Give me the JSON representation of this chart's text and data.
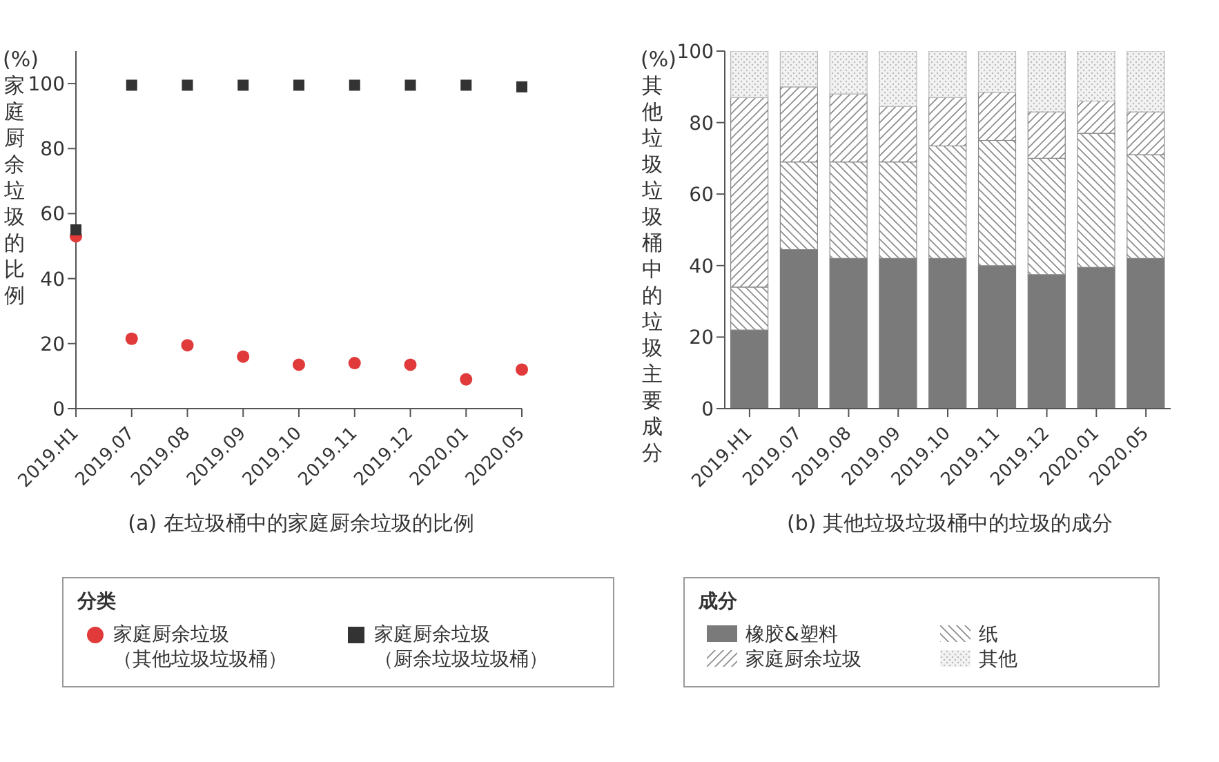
{
  "chart_data": [
    {
      "type": "scatter",
      "title": "(a) 在垃圾桶中的家庭厨余垃圾的比例",
      "ylabel": "(%) 家庭厨余垃圾的比例",
      "legend_title": "分类",
      "legend": "bottom",
      "grid": false,
      "categories": [
        "2019.H1",
        "2019.07",
        "2019.08",
        "2019.09",
        "2019.10",
        "2019.11",
        "2019.12",
        "2020.01",
        "2020.05"
      ],
      "ylim": [
        0,
        110
      ],
      "yticks": [
        0,
        20,
        40,
        60,
        80,
        100
      ],
      "series": [
        {
          "name": "家庭厨余垃圾（其他垃圾垃圾桶）",
          "color": "#e03a3a",
          "marker": "circle",
          "values": [
            53,
            21.5,
            19.5,
            16,
            13.5,
            14,
            13.5,
            9,
            12
          ]
        },
        {
          "name": "家庭厨余垃圾（厨余垃圾垃圾桶）",
          "color": "#333333",
          "marker": "square",
          "values": [
            55,
            99.5,
            99.5,
            99.5,
            99.5,
            99.5,
            99.5,
            99.5,
            99
          ]
        }
      ]
    },
    {
      "type": "bar",
      "stacked": true,
      "title": "(b) 其他垃圾垃圾桶中的垃圾的成分",
      "ylabel": "(%) 其他垃圾垃圾桶中的垃圾主要成分",
      "legend_title": "成分",
      "legend": "bottom",
      "grid": false,
      "categories": [
        "2019.H1",
        "2019.07",
        "2019.08",
        "2019.09",
        "2019.10",
        "2019.11",
        "2019.12",
        "2020.01",
        "2020.05"
      ],
      "ylim": [
        0,
        100
      ],
      "yticks": [
        0,
        20,
        40,
        60,
        80,
        100
      ],
      "series": [
        {
          "name": "橡胶&塑料",
          "color": "#7a7a7a",
          "values": [
            22,
            44.5,
            42,
            42,
            42,
            40,
            37.5,
            39.5,
            42
          ]
        },
        {
          "name": "纸",
          "color": "#8a8a8a",
          "values": [
            12,
            24.5,
            27,
            27,
            31.5,
            35,
            32.5,
            37.5,
            29
          ]
        },
        {
          "name": "家庭厨余垃圾",
          "color": "#8a8a8a",
          "values": [
            53,
            21,
            19,
            15.5,
            13.5,
            13.5,
            13,
            9,
            12
          ]
        },
        {
          "name": "其他",
          "color": "#b8b8b8",
          "values": [
            13,
            10,
            12,
            15.5,
            13,
            11.5,
            17,
            14,
            17
          ]
        }
      ]
    }
  ]
}
